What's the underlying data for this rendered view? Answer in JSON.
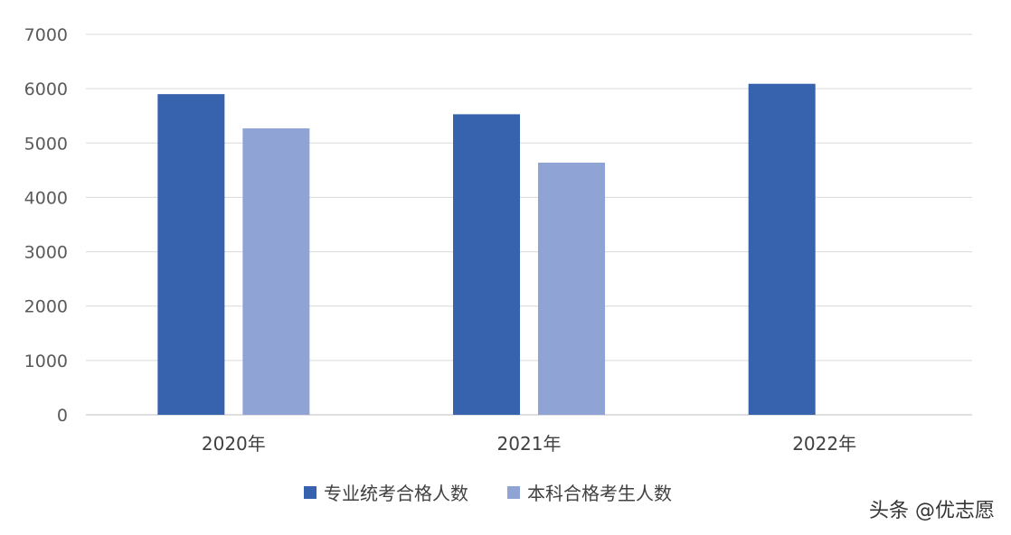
{
  "chart_data": {
    "type": "bar",
    "categories": [
      "2020年",
      "2021年",
      "2022年"
    ],
    "series": [
      {
        "name": "专业统考合格人数",
        "values": [
          5900,
          5530,
          6090
        ],
        "color": "#3762ae"
      },
      {
        "name": "本科合格考生人数",
        "values": [
          5270,
          4640,
          null
        ],
        "color": "#8fa4d5"
      }
    ],
    "y_ticks": [
      "0",
      "1000",
      "2000",
      "3000",
      "4000",
      "5000",
      "6000",
      "7000"
    ],
    "ylim": [
      0,
      7000
    ],
    "grid": true,
    "legend_position": "bottom-center"
  },
  "watermark": {
    "text": "头条 @优志愿"
  }
}
